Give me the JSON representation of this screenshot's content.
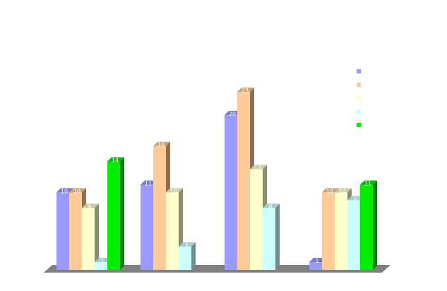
{
  "chart_data": {
    "type": "bar",
    "style": "3d",
    "title": "",
    "xlabel": "",
    "ylabel": "",
    "categories": [
      "",
      "",
      "",
      ""
    ],
    "ylim": [
      0,
      23
    ],
    "grid": false,
    "legend_position": "right",
    "series": [
      {
        "color": "#9999ff",
        "values": [
          10,
          11,
          20,
          1
        ]
      },
      {
        "color": "#ffcc99",
        "values": [
          10,
          16,
          23,
          10
        ]
      },
      {
        "color": "#ffffcc",
        "values": [
          8,
          10,
          13,
          10
        ]
      },
      {
        "color": "#ccffff",
        "values": [
          1,
          3,
          8,
          9
        ]
      },
      {
        "color": "#00ee00",
        "values": [
          14,
          null,
          null,
          11
        ]
      }
    ]
  }
}
